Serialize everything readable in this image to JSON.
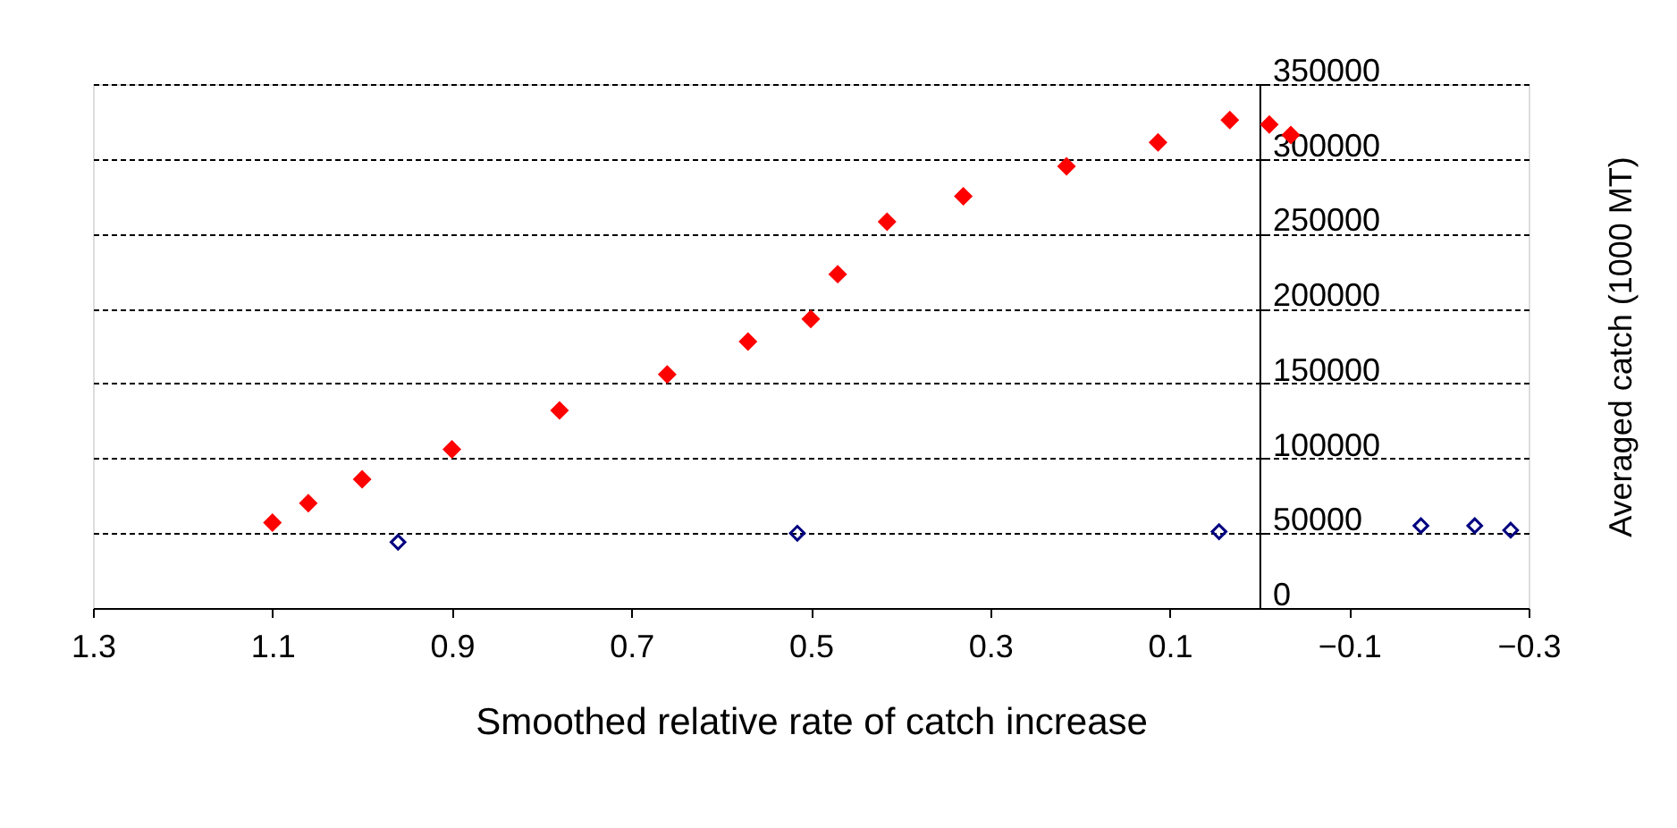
{
  "chart_data": {
    "type": "scatter",
    "xlabel": "Smoothed relative rate of catch increase",
    "ylabel": "Averaged catch (1000 MT)",
    "xlim": [
      1.3,
      -0.3
    ],
    "xticks": [
      1.3,
      1.1,
      0.9,
      0.7,
      0.5,
      0.3,
      0.1,
      -0.1,
      -0.3
    ],
    "ylim": [
      0,
      350000
    ],
    "yticks": [
      0,
      50000,
      100000,
      150000,
      200000,
      250000,
      300000,
      350000
    ],
    "grid": "y",
    "marker": "diamond",
    "series": [
      {
        "color": "#ff0000",
        "x": [
          1.1,
          1.06,
          1.0,
          0.9,
          0.78,
          0.66,
          0.57,
          0.5,
          0.47,
          0.415,
          0.33,
          0.215,
          0.113,
          0.033,
          -0.011,
          -0.035
        ],
        "values": [
          57000,
          70000,
          86000,
          106000,
          132000,
          156000,
          178000,
          193000,
          223000,
          258000,
          275000,
          295000,
          311000,
          326000,
          323000,
          316000
        ]
      },
      {
        "color": "#000080",
        "x": [
          0.96,
          0.515,
          0.045,
          -0.18,
          -0.24,
          -0.28
        ],
        "values": [
          44000,
          50000,
          51000,
          55000,
          55000,
          52000
        ]
      }
    ]
  }
}
